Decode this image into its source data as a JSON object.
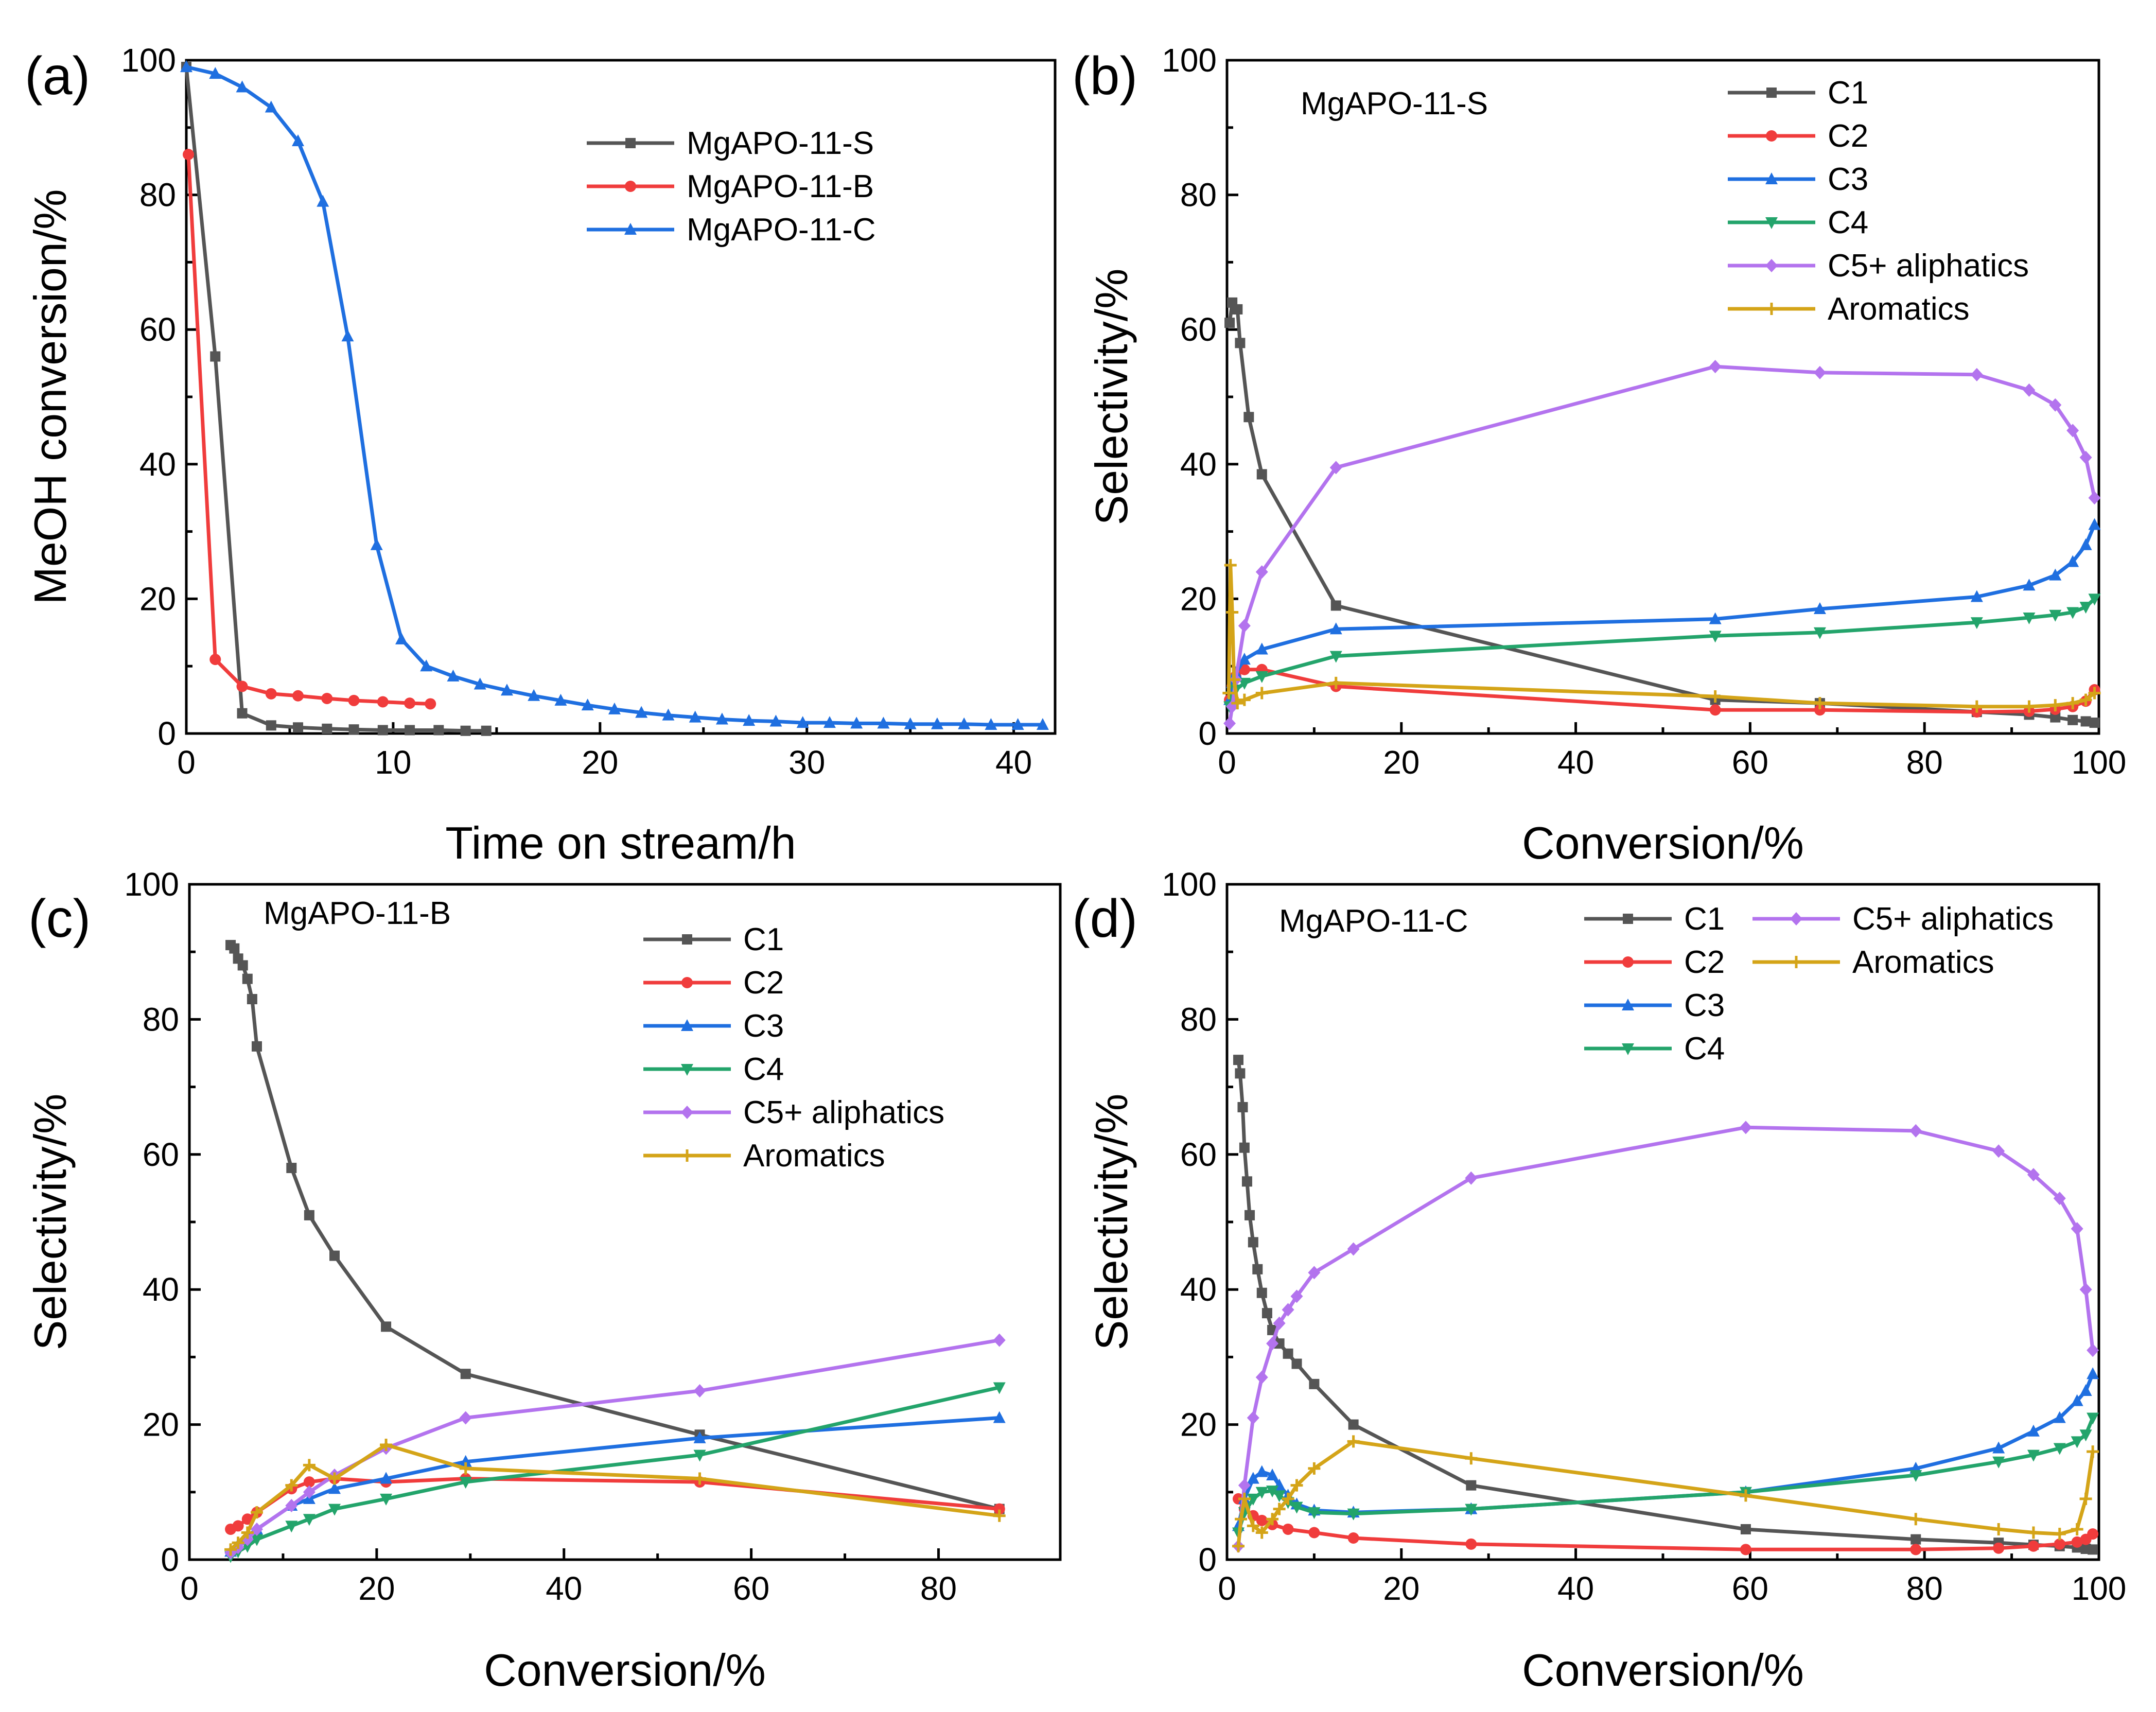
{
  "figure": {
    "colors": {
      "C1": "#555555",
      "C2": "#f03c3c",
      "C3": "#1f6fe0",
      "C4": "#23a46b",
      "C5+ aliphatics": "#b373ee",
      "Aromatics": "#d4a418"
    }
  },
  "chart_data": [
    {
      "panel": "(a)",
      "type": "line",
      "xlabel": "Time on stream/h",
      "ylabel": "MeOH conversion/%",
      "xlim": [
        0,
        42
      ],
      "ylim": [
        0,
        100
      ],
      "xticks": [
        0,
        10,
        20,
        30,
        40
      ],
      "yticks": [
        0,
        20,
        40,
        60,
        80,
        100
      ],
      "legend_position": "top-right",
      "series": [
        {
          "name": "MgAPO-11-S",
          "color": "#555555",
          "marker": "square",
          "x": [
            0,
            1.4,
            2.7,
            4.1,
            5.4,
            6.8,
            8.1,
            9.5,
            10.8,
            12.2,
            13.5,
            14.5
          ],
          "y": [
            99,
            56,
            3,
            1.2,
            0.9,
            0.7,
            0.6,
            0.5,
            0.5,
            0.5,
            0.4,
            0.4
          ]
        },
        {
          "name": "MgAPO-11-B",
          "color": "#f03c3c",
          "marker": "circle",
          "x": [
            0.1,
            1.4,
            2.7,
            4.1,
            5.4,
            6.8,
            8.1,
            9.5,
            10.8,
            11.8
          ],
          "y": [
            86,
            11,
            7,
            5.9,
            5.6,
            5.2,
            4.9,
            4.7,
            4.5,
            4.4
          ]
        },
        {
          "name": "MgAPO-11-C",
          "color": "#1f6fe0",
          "marker": "triangle",
          "x": [
            0,
            1.4,
            2.7,
            4.1,
            5.4,
            6.6,
            7.8,
            9.2,
            10.4,
            11.6,
            12.9,
            14.2,
            15.5,
            16.8,
            18.1,
            19.4,
            20.7,
            22,
            23.3,
            24.6,
            25.9,
            27.2,
            28.5,
            29.8,
            31.1,
            32.4,
            33.7,
            35,
            36.3,
            37.6,
            38.9,
            40.2,
            41.4
          ],
          "y": [
            99,
            98,
            96,
            93,
            88,
            79,
            59,
            28,
            14,
            10,
            8.5,
            7.3,
            6.4,
            5.6,
            4.9,
            4.2,
            3.6,
            3.1,
            2.7,
            2.4,
            2.1,
            1.9,
            1.8,
            1.6,
            1.6,
            1.5,
            1.5,
            1.4,
            1.4,
            1.4,
            1.3,
            1.3,
            1.3
          ]
        }
      ]
    },
    {
      "panel": "(b)",
      "type": "line",
      "sample": "MgAPO-11-S",
      "xlabel": "Conversion/%",
      "ylabel": "Selectivity/%",
      "xlim": [
        0,
        100
      ],
      "ylim": [
        0,
        100
      ],
      "xticks": [
        0,
        20,
        40,
        60,
        80,
        100
      ],
      "yticks": [
        0,
        20,
        40,
        60,
        80,
        100
      ],
      "legend_position": "top-right",
      "series": [
        {
          "name": "C1",
          "color": "#555555",
          "marker": "square",
          "x": [
            0.3,
            0.6,
            0.9,
            1.2,
            1.5,
            2.5,
            4,
            12.5,
            56,
            68,
            86,
            92,
            95,
            97,
            98.5,
            99.5
          ],
          "y": [
            61,
            64,
            63,
            63,
            58,
            47,
            38.5,
            19,
            5,
            4.5,
            3.2,
            2.8,
            2.4,
            2,
            1.8,
            1.6
          ]
        },
        {
          "name": "C2",
          "color": "#f03c3c",
          "marker": "circle",
          "x": [
            0.3,
            0.6,
            1,
            2,
            4,
            12.5,
            56,
            68,
            86,
            92,
            95,
            97,
            98.5,
            99.5
          ],
          "y": [
            5,
            7,
            8.5,
            9.5,
            9.5,
            7,
            3.5,
            3.5,
            3.2,
            3.3,
            3.6,
            4,
            4.8,
            6.5
          ]
        },
        {
          "name": "C3",
          "color": "#1f6fe0",
          "marker": "triangle",
          "x": [
            0.3,
            0.6,
            1,
            2,
            4,
            12.5,
            56,
            68,
            86,
            92,
            95,
            97,
            98.5,
            99.5
          ],
          "y": [
            5,
            7.5,
            9,
            11,
            12.5,
            15.5,
            17,
            18.5,
            20.3,
            22,
            23.5,
            25.5,
            28,
            31
          ]
        },
        {
          "name": "C4",
          "color": "#23a46b",
          "marker": "triangle-down",
          "x": [
            0.3,
            0.6,
            1,
            2,
            4,
            12.5,
            56,
            68,
            86,
            92,
            95,
            97,
            98.5,
            99.5
          ],
          "y": [
            4,
            5.5,
            6.5,
            7.5,
            8.5,
            11.5,
            14.5,
            15,
            16.5,
            17.2,
            17.6,
            18,
            18.8,
            20
          ]
        },
        {
          "name": "C5+ aliphatics",
          "color": "#b373ee",
          "marker": "diamond",
          "x": [
            0.3,
            0.6,
            1,
            2,
            4,
            12.5,
            56,
            68,
            86,
            92,
            95,
            97,
            98.5,
            99.5
          ],
          "y": [
            1.5,
            4,
            8,
            16,
            24,
            39.5,
            54.5,
            53.6,
            53.3,
            51,
            48.8,
            45,
            41,
            35
          ]
        },
        {
          "name": "Aromatics",
          "color": "#d4a418",
          "marker": "plus",
          "x": [
            0.2,
            0.4,
            0.6,
            0.8,
            1.2,
            2,
            4,
            12.5,
            56,
            68,
            86,
            92,
            95,
            97,
            98.5,
            99.5
          ],
          "y": [
            6,
            25,
            18,
            8,
            4.5,
            5,
            6,
            7.5,
            5.5,
            4.5,
            4,
            4,
            4.2,
            4.5,
            5,
            6
          ]
        }
      ]
    },
    {
      "panel": "(c)",
      "type": "line",
      "sample": "MgAPO-11-B",
      "xlabel": "Conversion/%",
      "ylabel": "Selectivity/%",
      "xlim": [
        0,
        93
      ],
      "ylim": [
        0,
        100
      ],
      "xticks": [
        0,
        20,
        40,
        60,
        80
      ],
      "yticks": [
        0,
        20,
        40,
        60,
        80,
        100
      ],
      "legend_position": "top-right",
      "series": [
        {
          "name": "C1",
          "color": "#555555",
          "marker": "square",
          "x": [
            4.4,
            4.8,
            5.2,
            5.7,
            6.2,
            6.7,
            7.2,
            10.9,
            12.8,
            15.5,
            21,
            29.5,
            54.5,
            86.5
          ],
          "y": [
            91,
            90.5,
            89,
            88,
            86,
            83,
            76,
            58,
            51,
            45,
            34.5,
            27.5,
            18.5,
            7.5
          ]
        },
        {
          "name": "C2",
          "color": "#f03c3c",
          "marker": "circle",
          "x": [
            4.4,
            5.2,
            6.2,
            7.2,
            10.9,
            12.8,
            15.5,
            21,
            29.5,
            54.5,
            86.5
          ],
          "y": [
            4.5,
            5,
            6,
            7,
            10.5,
            11.5,
            12,
            11.5,
            12,
            11.5,
            7.5
          ]
        },
        {
          "name": "C3",
          "color": "#1f6fe0",
          "marker": "triangle",
          "x": [
            4.4,
            5.2,
            6.2,
            7.2,
            10.9,
            12.8,
            15.5,
            21,
            29.5,
            54.5,
            86.5
          ],
          "y": [
            1.2,
            2.2,
            3.5,
            4.5,
            8,
            9,
            10.5,
            12,
            14.5,
            18,
            21
          ]
        },
        {
          "name": "C4",
          "color": "#23a46b",
          "marker": "triangle-down",
          "x": [
            4.4,
            5.2,
            6.2,
            7.2,
            10.9,
            12.8,
            15.5,
            21,
            29.5,
            54.5,
            86.5
          ],
          "y": [
            0.5,
            1.2,
            2,
            3,
            5,
            6,
            7.5,
            9,
            11.5,
            15.5,
            25.5
          ]
        },
        {
          "name": "C5+ aliphatics",
          "color": "#b373ee",
          "marker": "diamond",
          "x": [
            4.4,
            5.2,
            6.2,
            7.2,
            10.9,
            12.8,
            15.5,
            21,
            29.5,
            54.5,
            86.5
          ],
          "y": [
            1,
            1.8,
            3,
            4.5,
            8,
            10,
            12.5,
            16.5,
            21,
            25,
            32.5
          ]
        },
        {
          "name": "Aromatics",
          "color": "#d4a418",
          "marker": "plus",
          "x": [
            4.4,
            5.2,
            6.2,
            7.2,
            10.9,
            12.8,
            15.5,
            21,
            29.5,
            54.5,
            86.5
          ],
          "y": [
            1.5,
            2.5,
            4,
            7,
            11,
            14,
            12,
            17,
            13.5,
            12,
            6.5
          ]
        }
      ]
    },
    {
      "panel": "(d)",
      "type": "line",
      "sample": "MgAPO-11-C",
      "xlabel": "Conversion/%",
      "ylabel": "Selectivity/%",
      "xlim": [
        0,
        100
      ],
      "ylim": [
        0,
        100
      ],
      "xticks": [
        0,
        20,
        40,
        60,
        80,
        100
      ],
      "yticks": [
        0,
        20,
        40,
        60,
        80,
        100
      ],
      "legend_position": "top-right",
      "series": [
        {
          "name": "C1",
          "color": "#555555",
          "marker": "square",
          "x": [
            1.3,
            1.5,
            1.8,
            2,
            2.3,
            2.6,
            3,
            3.5,
            4,
            4.6,
            5.2,
            6,
            7,
            8,
            10,
            14.5,
            28,
            59.5,
            79,
            88.5,
            92.5,
            95.5,
            97.5,
            98.5,
            99.3
          ],
          "y": [
            74,
            72,
            67,
            61,
            56,
            51,
            47,
            43,
            39.5,
            36.5,
            34,
            32,
            30.5,
            29,
            26,
            20,
            11,
            4.5,
            3,
            2.5,
            2.2,
            2,
            1.8,
            1.6,
            1.5
          ]
        },
        {
          "name": "C2",
          "color": "#f03c3c",
          "marker": "circle",
          "x": [
            1.3,
            2,
            3,
            4,
            5.2,
            7,
            10,
            14.5,
            28,
            59.5,
            79,
            88.5,
            92.5,
            95.5,
            97.5,
            98.5,
            99.3
          ],
          "y": [
            9,
            7.5,
            6.5,
            5.8,
            5.2,
            4.5,
            4,
            3.2,
            2.3,
            1.5,
            1.5,
            1.7,
            2,
            2.3,
            2.6,
            3,
            3.8
          ]
        },
        {
          "name": "C3",
          "color": "#1f6fe0",
          "marker": "triangle",
          "x": [
            1.3,
            2,
            3,
            4,
            5.2,
            6,
            7,
            8,
            10,
            14.5,
            28,
            59.5,
            79,
            88.5,
            92.5,
            95.5,
            97.5,
            98.5,
            99.3
          ],
          "y": [
            5,
            9,
            12,
            13,
            12.5,
            11,
            9.5,
            8.2,
            7.3,
            7,
            7.5,
            10,
            13.5,
            16.5,
            19,
            21,
            23.5,
            25,
            27.5
          ]
        },
        {
          "name": "C4",
          "color": "#23a46b",
          "marker": "triangle-down",
          "x": [
            1.3,
            2,
            3,
            4,
            5.2,
            6,
            7,
            8,
            10,
            14.5,
            28,
            59.5,
            79,
            88.5,
            92.5,
            95.5,
            97.5,
            98.5,
            99.3
          ],
          "y": [
            4,
            7,
            9,
            10,
            10.2,
            9.5,
            8.5,
            7.8,
            7,
            6.8,
            7.5,
            10,
            12.5,
            14.5,
            15.5,
            16.5,
            17.5,
            18.5,
            21
          ]
        },
        {
          "name": "C5+ aliphatics",
          "color": "#b373ee",
          "marker": "diamond",
          "x": [
            1.3,
            2,
            3,
            4,
            5.2,
            6,
            7,
            8,
            10,
            14.5,
            28,
            59.5,
            79,
            88.5,
            92.5,
            95.5,
            97.5,
            98.5,
            99.3
          ],
          "y": [
            2,
            11,
            21,
            27,
            32,
            35,
            37,
            39,
            42.5,
            46,
            56.5,
            64,
            63.5,
            60.5,
            57,
            53.5,
            49,
            40,
            31
          ]
        },
        {
          "name": "Aromatics",
          "color": "#d4a418",
          "marker": "plus",
          "x": [
            1.3,
            1.6,
            2,
            3,
            4,
            5.2,
            6,
            7,
            8,
            10,
            14.5,
            28,
            59.5,
            79,
            88.5,
            92.5,
            95.5,
            97.5,
            98.5,
            99.3
          ],
          "y": [
            2,
            6,
            9,
            5,
            4,
            6,
            7.5,
            9,
            11,
            13.5,
            17.5,
            15,
            9.5,
            6,
            4.5,
            4,
            3.8,
            4.5,
            9,
            16
          ]
        }
      ]
    }
  ]
}
